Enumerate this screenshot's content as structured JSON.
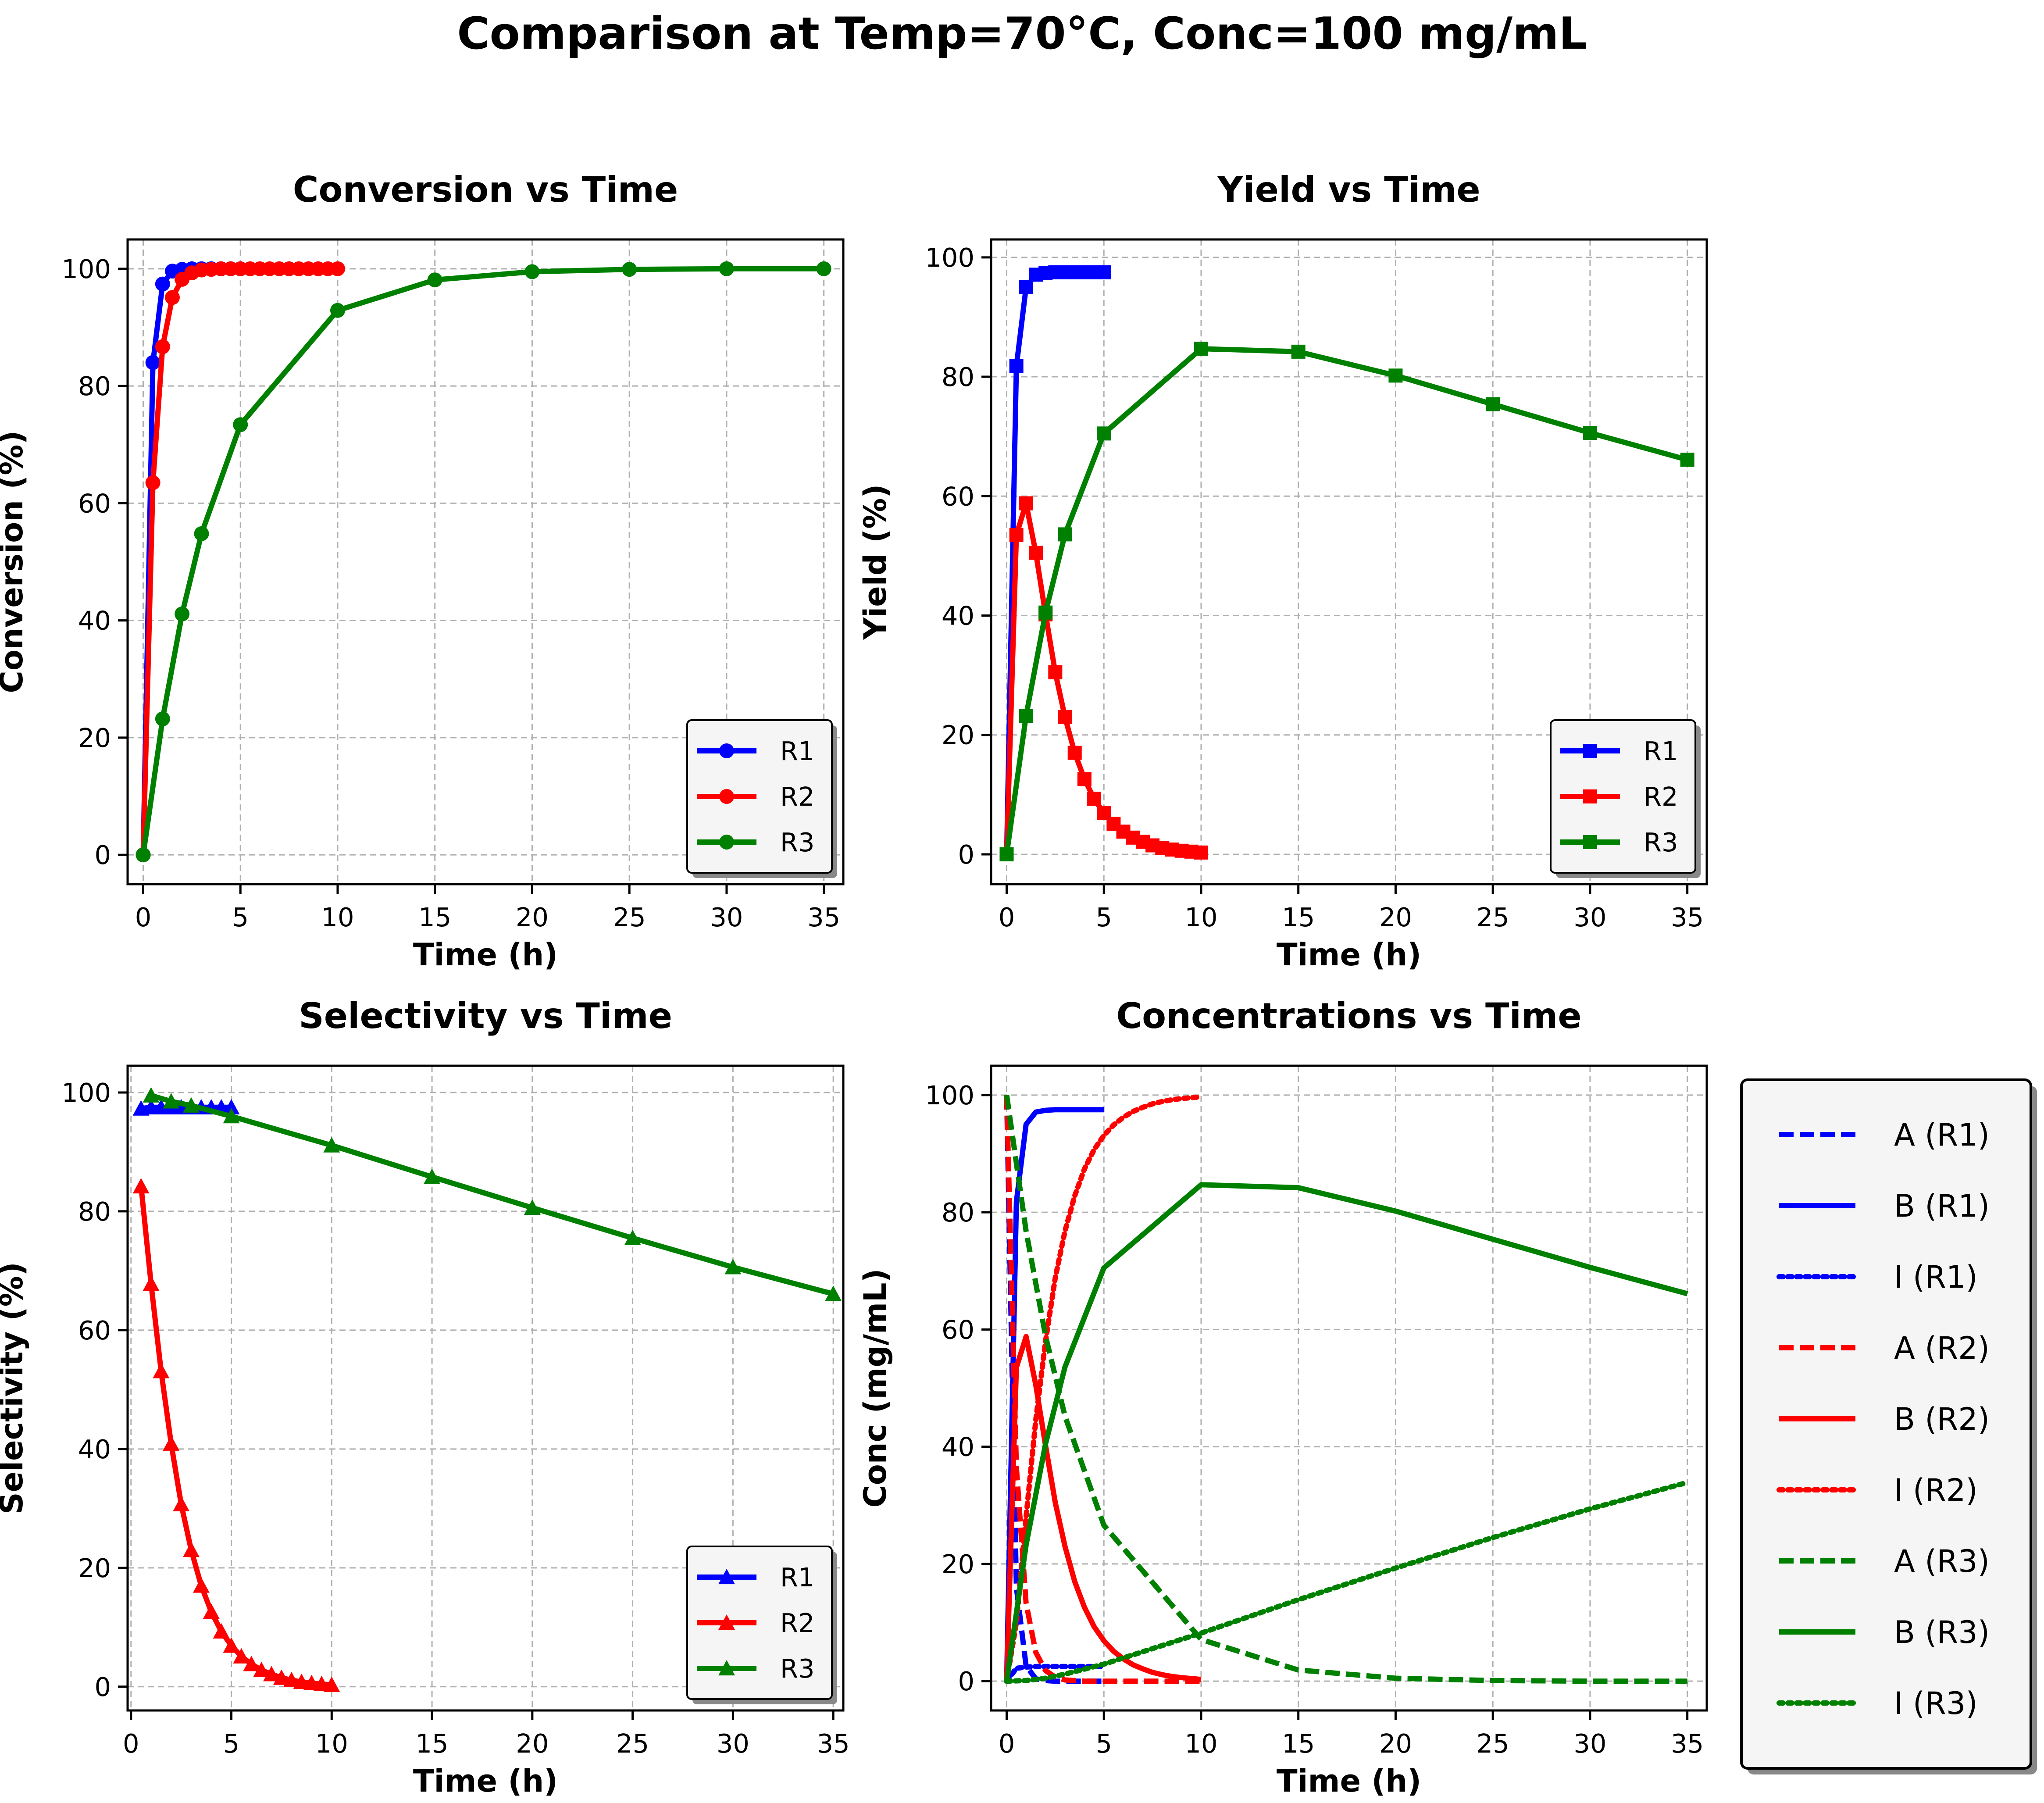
{
  "figure": {
    "title": "Comparison at Temp=70°C, Conc=100 mg/mL"
  },
  "colors": {
    "R1": "#0000ff",
    "R2": "#ff0000",
    "R3": "#008000"
  },
  "chart_data": [
    {
      "type": "line",
      "title": "Conversion vs Time",
      "xlabel": "Time (h)",
      "ylabel": "Conversion (%)",
      "xlim": [
        -0.8,
        36
      ],
      "ylim": [
        -5,
        105
      ],
      "xticks": [
        0,
        5,
        10,
        15,
        20,
        25,
        30,
        35
      ],
      "yticks": [
        0,
        20,
        40,
        60,
        80,
        100
      ],
      "grid": true,
      "legend": "lower right",
      "marker": "circle",
      "series": [
        {
          "name": "R1",
          "color": "#0000ff",
          "x": [
            0,
            0.5,
            1,
            1.5,
            2,
            2.5,
            3,
            3.5,
            4,
            4.5,
            5
          ],
          "y": [
            0,
            84,
            97.4,
            99.6,
            99.9,
            100,
            100,
            100,
            100,
            100,
            100
          ]
        },
        {
          "name": "R2",
          "color": "#ff0000",
          "x": [
            0,
            0.5,
            1,
            1.5,
            2,
            2.5,
            3,
            3.5,
            4,
            4.5,
            5,
            5.5,
            6,
            6.5,
            7,
            7.5,
            8,
            8.5,
            9,
            9.5,
            10
          ],
          "y": [
            0,
            63.5,
            86.7,
            95.1,
            98.2,
            99.3,
            99.8,
            99.9,
            100,
            100,
            100,
            100,
            100,
            100,
            100,
            100,
            100,
            100,
            100,
            100,
            100
          ]
        },
        {
          "name": "R3",
          "color": "#008000",
          "x": [
            0,
            1,
            2,
            3,
            5,
            10,
            15,
            20,
            25,
            30,
            35
          ],
          "y": [
            0,
            23.2,
            41.1,
            54.8,
            73.4,
            92.9,
            98.1,
            99.5,
            99.9,
            100,
            100
          ]
        }
      ]
    },
    {
      "type": "line",
      "title": "Yield vs Time",
      "xlabel": "Time (h)",
      "ylabel": "Yield (%)",
      "xlim": [
        -0.8,
        36
      ],
      "ylim": [
        -5,
        103
      ],
      "xticks": [
        0,
        5,
        10,
        15,
        20,
        25,
        30,
        35
      ],
      "yticks": [
        0,
        20,
        40,
        60,
        80,
        100
      ],
      "grid": true,
      "legend": "lower right",
      "marker": "square",
      "series": [
        {
          "name": "R1",
          "color": "#0000ff",
          "x": [
            0,
            0.5,
            1,
            1.5,
            2,
            2.5,
            3,
            3.5,
            4,
            4.5,
            5
          ],
          "y": [
            0,
            81.8,
            95.0,
            97.1,
            97.4,
            97.5,
            97.5,
            97.5,
            97.5,
            97.5,
            97.5
          ]
        },
        {
          "name": "R2",
          "color": "#ff0000",
          "x": [
            0,
            0.5,
            1,
            1.5,
            2,
            2.5,
            3,
            3.5,
            4,
            4.5,
            5,
            5.5,
            6,
            6.5,
            7,
            7.5,
            8,
            8.5,
            9,
            9.5,
            10
          ],
          "y": [
            0,
            53.5,
            58.8,
            50.5,
            40.2,
            30.5,
            23,
            17,
            12.6,
            9.3,
            6.9,
            5.1,
            3.8,
            2.8,
            2.1,
            1.5,
            1.1,
            0.8,
            0.6,
            0.45,
            0.3
          ]
        },
        {
          "name": "R3",
          "color": "#008000",
          "x": [
            0,
            1,
            2,
            3,
            5,
            10,
            15,
            20,
            25,
            30,
            35
          ],
          "y": [
            0,
            23.2,
            40.5,
            53.6,
            70.5,
            84.7,
            84.2,
            80.2,
            75.4,
            70.6,
            66.1
          ]
        }
      ]
    },
    {
      "type": "line",
      "title": "Selectivity vs Time",
      "xlabel": "Time (h)",
      "ylabel": "Selectivity (%)",
      "xlim": [
        -0.17,
        35.5
      ],
      "ylim": [
        -4,
        104.5
      ],
      "xticks": [
        0,
        5,
        10,
        15,
        20,
        25,
        30,
        35
      ],
      "yticks": [
        0,
        20,
        40,
        60,
        80,
        100
      ],
      "grid": true,
      "legend": "lower right",
      "marker": "triangle",
      "series": [
        {
          "name": "R1",
          "color": "#0000ff",
          "x": [
            0.5,
            1,
            1.5,
            2,
            2.5,
            3,
            3.5,
            4,
            4.5,
            5
          ],
          "y": [
            97.3,
            97.5,
            97.5,
            97.5,
            97.5,
            97.5,
            97.5,
            97.5,
            97.5,
            97.5
          ]
        },
        {
          "name": "R2",
          "color": "#ff0000",
          "x": [
            0.5,
            1,
            1.5,
            2,
            2.5,
            3,
            3.5,
            4,
            4.5,
            5,
            5.5,
            6,
            6.5,
            7,
            7.5,
            8,
            8.5,
            9,
            9.5,
            10
          ],
          "y": [
            84.2,
            67.8,
            53.1,
            40.9,
            30.7,
            23,
            17,
            12.6,
            9.3,
            6.9,
            5.1,
            3.8,
            2.8,
            2.1,
            1.5,
            1.1,
            0.8,
            0.6,
            0.45,
            0.3
          ]
        },
        {
          "name": "R3",
          "color": "#008000",
          "x": [
            1,
            2,
            3,
            5,
            10,
            15,
            20,
            25,
            30,
            35
          ],
          "y": [
            99.5,
            98.5,
            97.8,
            96,
            91.1,
            85.8,
            80.6,
            75.5,
            70.6,
            66.1
          ]
        }
      ]
    },
    {
      "type": "line",
      "title": "Concentrations vs Time",
      "xlabel": "Time (h)",
      "ylabel": "Conc (mg/mL)",
      "xlim": [
        -0.8,
        36
      ],
      "ylim": [
        -5,
        105
      ],
      "xticks": [
        0,
        5,
        10,
        15,
        20,
        25,
        30,
        35
      ],
      "yticks": [
        0,
        20,
        40,
        60,
        80,
        100
      ],
      "grid": true,
      "legend": "outside right",
      "marker": "none",
      "series": [
        {
          "name": "A (R1)",
          "color": "#0000ff",
          "dash": "dashed",
          "x": [
            0,
            0.5,
            1,
            1.5,
            2,
            2.5,
            3,
            3.5,
            4,
            4.5,
            5
          ],
          "y": [
            100,
            16,
            2.6,
            0.4,
            0.1,
            0,
            0,
            0,
            0,
            0,
            0
          ]
        },
        {
          "name": "B (R1)",
          "color": "#0000ff",
          "dash": "solid",
          "x": [
            0,
            0.5,
            1,
            1.5,
            2,
            2.5,
            3,
            3.5,
            4,
            4.5,
            5
          ],
          "y": [
            0,
            81.8,
            95.0,
            97.1,
            97.4,
            97.5,
            97.5,
            97.5,
            97.5,
            97.5,
            97.5
          ]
        },
        {
          "name": "I (R1)",
          "color": "#0000ff",
          "dash": "dotted",
          "x": [
            0,
            0.5,
            1,
            1.5,
            2,
            2.5,
            3,
            3.5,
            4,
            4.5,
            5
          ],
          "y": [
            0,
            2.2,
            2.4,
            2.5,
            2.5,
            2.5,
            2.5,
            2.5,
            2.5,
            2.5,
            2.5
          ]
        },
        {
          "name": "A (R2)",
          "color": "#ff0000",
          "dash": "dashed",
          "x": [
            0,
            0.5,
            1,
            1.5,
            2,
            2.5,
            3,
            3.5,
            4,
            4.5,
            5,
            6,
            7,
            8,
            9,
            10
          ],
          "y": [
            100,
            36.5,
            13.3,
            4.9,
            1.8,
            0.7,
            0.2,
            0.1,
            0,
            0,
            0,
            0,
            0,
            0,
            0,
            0
          ]
        },
        {
          "name": "B (R2)",
          "color": "#ff0000",
          "dash": "solid",
          "x": [
            0,
            0.5,
            1,
            1.5,
            2,
            2.5,
            3,
            3.5,
            4,
            4.5,
            5,
            5.5,
            6,
            6.5,
            7,
            7.5,
            8,
            8.5,
            9,
            9.5,
            10
          ],
          "y": [
            0,
            53.5,
            58.8,
            50.5,
            40.2,
            30.5,
            23,
            17,
            12.6,
            9.3,
            6.9,
            5.1,
            3.8,
            2.8,
            2.1,
            1.5,
            1.1,
            0.8,
            0.6,
            0.45,
            0.3
          ]
        },
        {
          "name": "I (R2)",
          "color": "#ff0000",
          "dash": "dotted",
          "x": [
            0,
            0.5,
            1,
            1.5,
            2,
            2.5,
            3,
            3.5,
            4,
            4.5,
            5,
            5.5,
            6,
            6.5,
            7,
            7.5,
            8,
            8.5,
            9,
            9.5,
            10
          ],
          "y": [
            0,
            10,
            28,
            44.6,
            58,
            68.8,
            76.8,
            82.8,
            87.4,
            90.7,
            93.1,
            94.9,
            96.2,
            97.2,
            97.9,
            98.5,
            98.9,
            99.2,
            99.4,
            99.55,
            99.7
          ]
        },
        {
          "name": "A (R3)",
          "color": "#008000",
          "dash": "dashed",
          "x": [
            0,
            1,
            2,
            3,
            5,
            10,
            15,
            20,
            25,
            30,
            35
          ],
          "y": [
            100,
            76.8,
            58.9,
            45.2,
            26.6,
            7.1,
            1.9,
            0.5,
            0.1,
            0,
            0
          ]
        },
        {
          "name": "B (R3)",
          "color": "#008000",
          "dash": "solid",
          "x": [
            0,
            1,
            2,
            3,
            5,
            10,
            15,
            20,
            25,
            30,
            35
          ],
          "y": [
            0,
            23.2,
            40.5,
            53.6,
            70.5,
            84.7,
            84.2,
            80.2,
            75.4,
            70.6,
            66.1
          ]
        },
        {
          "name": "I (R3)",
          "color": "#008000",
          "dash": "dotted",
          "x": [
            0,
            1,
            2,
            3,
            5,
            10,
            15,
            20,
            25,
            30,
            35
          ],
          "y": [
            0,
            0.1,
            0.5,
            1.2,
            2.9,
            8.2,
            13.9,
            19.3,
            24.5,
            29.4,
            33.9
          ]
        }
      ]
    }
  ]
}
